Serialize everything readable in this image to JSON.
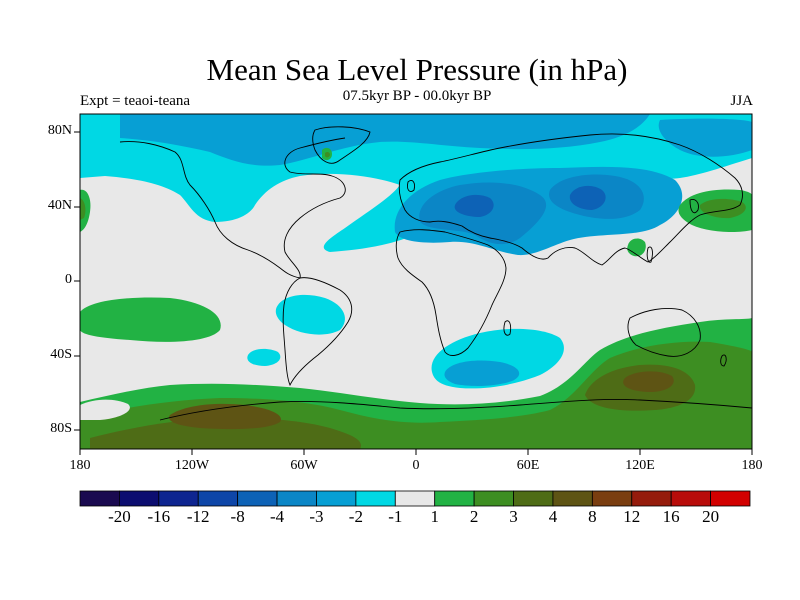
{
  "title": "Mean Sea Level Pressure (in hPa)",
  "subtitle": "07.5kyr BP - 00.0kyr BP",
  "left_label": "Expt = teaoi-teana",
  "right_label": "JJA",
  "axes": {
    "lat_labels": [
      "80N",
      "40N",
      "0",
      "40S",
      "80S"
    ],
    "lon_labels": [
      "180",
      "120W",
      "60W",
      "0",
      "60E",
      "120E",
      "180"
    ]
  },
  "colorbar": {
    "labels": [
      "-20",
      "-16",
      "-12",
      "-8",
      "-4",
      "-3",
      "-2",
      "-1",
      "1",
      "2",
      "3",
      "4",
      "8",
      "12",
      "16",
      "20"
    ],
    "colors": [
      "#1a0a50",
      "#0c0d70",
      "#0e2590",
      "#0e46a8",
      "#0d62b6",
      "#0b86c6",
      "#079fd4",
      "#00d8e4",
      "#e8e8e8",
      "#22b244",
      "#3d8e22",
      "#4e6c16",
      "#5e5414",
      "#7a3e10",
      "#951c0c",
      "#b80c0a",
      "#d20000"
    ]
  },
  "map_colors": {
    "background": "#e8e8e8",
    "cyan": "#00d8e4",
    "light_blue": "#079fd4",
    "mid_blue": "#0b86c6",
    "dark_blue": "#0d62b6",
    "green": "#22b244",
    "dark_green": "#3d8e22",
    "olive": "#4e6c16",
    "brown": "#5e5414"
  }
}
